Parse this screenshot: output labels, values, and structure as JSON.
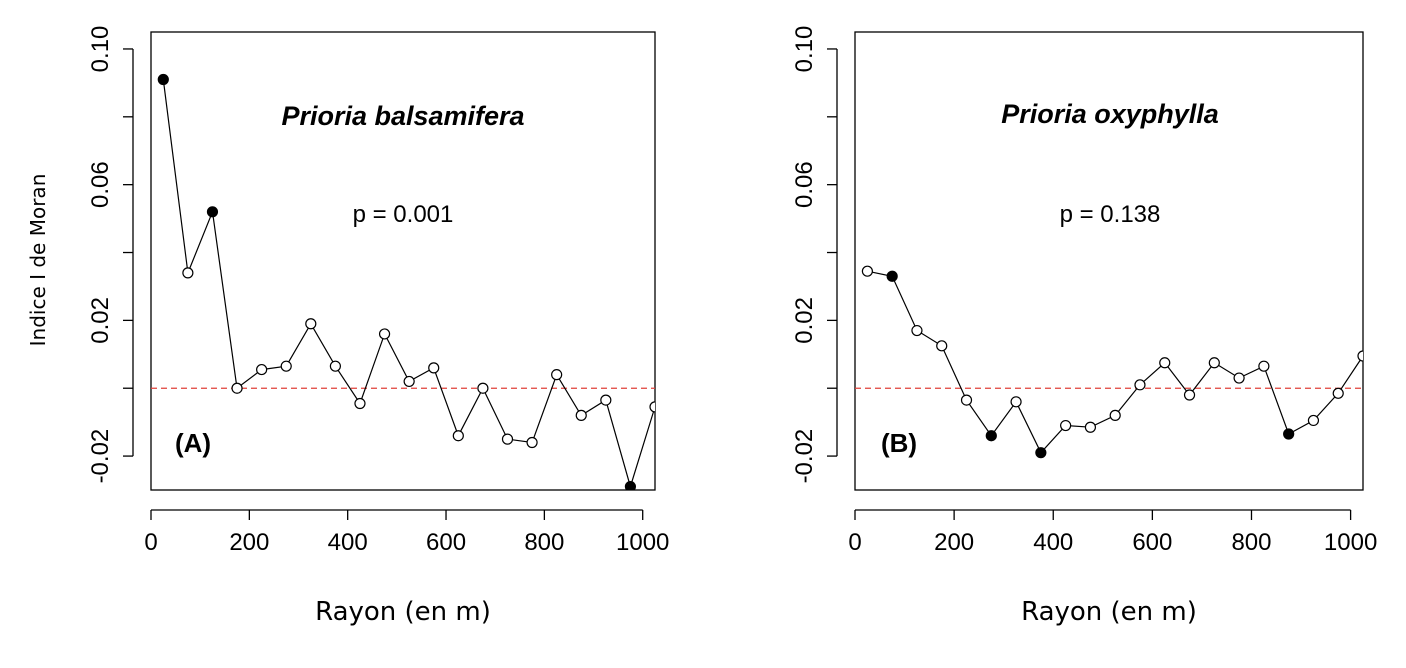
{
  "chart_data": [
    {
      "type": "line",
      "panel_label": "(A)",
      "title": "Prioria balsamifera",
      "p_value_text": "p = 0.001",
      "xlabel": "Rayon (en m)",
      "ylabel": "Indice I de Moran",
      "xlim": [
        0,
        1025
      ],
      "ylim": [
        -0.03,
        0.105
      ],
      "xticks": [
        0,
        200,
        400,
        600,
        800,
        1000
      ],
      "xtick_labels": [
        "0",
        "200",
        "400",
        "600",
        "800",
        "1000"
      ],
      "yticks": [
        -0.02,
        0,
        0.02,
        0.04,
        0.06,
        0.08,
        0.1
      ],
      "ytick_labels": [
        "-0.02",
        "",
        "0.02",
        "",
        "0.06",
        "",
        "0.10"
      ],
      "reference_line": {
        "y": 0,
        "color": "#e0403a"
      },
      "x": [
        25,
        75,
        125,
        175,
        225,
        275,
        325,
        375,
        425,
        475,
        525,
        575,
        625,
        675,
        725,
        775,
        825,
        875,
        925,
        975,
        1025
      ],
      "values": [
        0.091,
        0.034,
        0.052,
        0.0,
        0.0055,
        0.0065,
        0.019,
        0.0065,
        -0.0045,
        0.016,
        0.002,
        0.006,
        -0.014,
        0.0,
        -0.015,
        -0.016,
        0.004,
        -0.008,
        -0.0035,
        -0.029,
        -0.0055
      ],
      "significant": [
        true,
        false,
        true,
        false,
        false,
        false,
        false,
        false,
        false,
        false,
        false,
        false,
        false,
        false,
        false,
        false,
        false,
        false,
        false,
        true,
        false
      ]
    },
    {
      "type": "line",
      "panel_label": "(B)",
      "title": "Prioria oxyphylla",
      "p_value_text": "p = 0.138",
      "xlabel": "Rayon (en m)",
      "ylabel": "",
      "xlim": [
        0,
        1025
      ],
      "ylim": [
        -0.03,
        0.105
      ],
      "xticks": [
        0,
        200,
        400,
        600,
        800,
        1000
      ],
      "xtick_labels": [
        "0",
        "200",
        "400",
        "600",
        "800",
        "1000"
      ],
      "yticks": [
        -0.02,
        0,
        0.02,
        0.04,
        0.06,
        0.08,
        0.1
      ],
      "ytick_labels": [
        "-0.02",
        "",
        "0.02",
        "",
        "0.06",
        "",
        "0.10"
      ],
      "reference_line": {
        "y": 0,
        "color": "#e0403a"
      },
      "x": [
        25,
        75,
        125,
        175,
        225,
        275,
        325,
        375,
        425,
        475,
        525,
        575,
        625,
        675,
        725,
        775,
        825,
        875,
        925,
        975,
        1025
      ],
      "values": [
        0.0345,
        0.033,
        0.017,
        0.0125,
        -0.0035,
        -0.014,
        -0.004,
        -0.019,
        -0.011,
        -0.0115,
        -0.008,
        0.001,
        0.0075,
        -0.002,
        0.0075,
        0.003,
        0.0065,
        -0.0135,
        -0.0095,
        -0.0015,
        0.0095
      ],
      "significant": [
        false,
        true,
        false,
        false,
        false,
        true,
        false,
        true,
        false,
        false,
        false,
        false,
        false,
        false,
        false,
        false,
        false,
        true,
        false,
        false,
        false
      ]
    }
  ]
}
